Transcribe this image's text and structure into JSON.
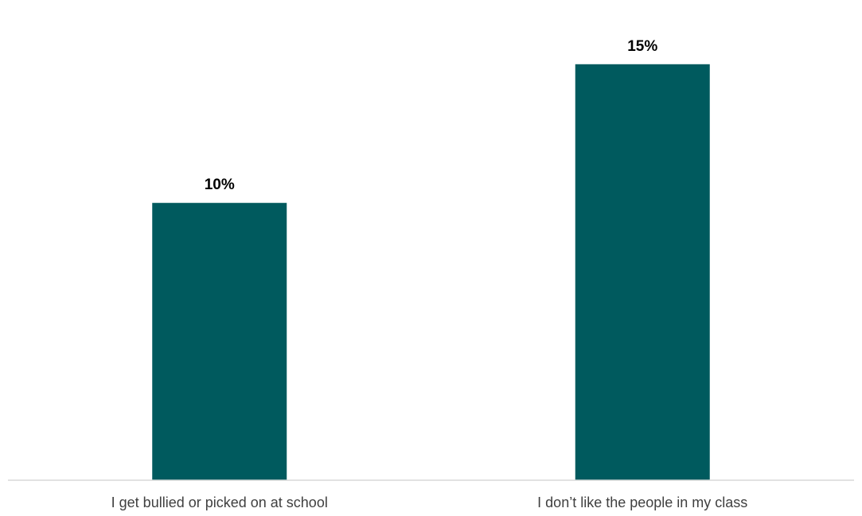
{
  "chart_data": {
    "type": "bar",
    "categories": [
      "I get bullied or picked on at school",
      "I don’t like the people in my class"
    ],
    "values": [
      10,
      15
    ],
    "value_labels": [
      "10%",
      "15%"
    ],
    "unit": "%",
    "ylim": [
      0,
      16.8
    ],
    "grid": false,
    "legend": "none",
    "bar_color": "#005a5e",
    "axis_color": "#d9d9d9"
  }
}
